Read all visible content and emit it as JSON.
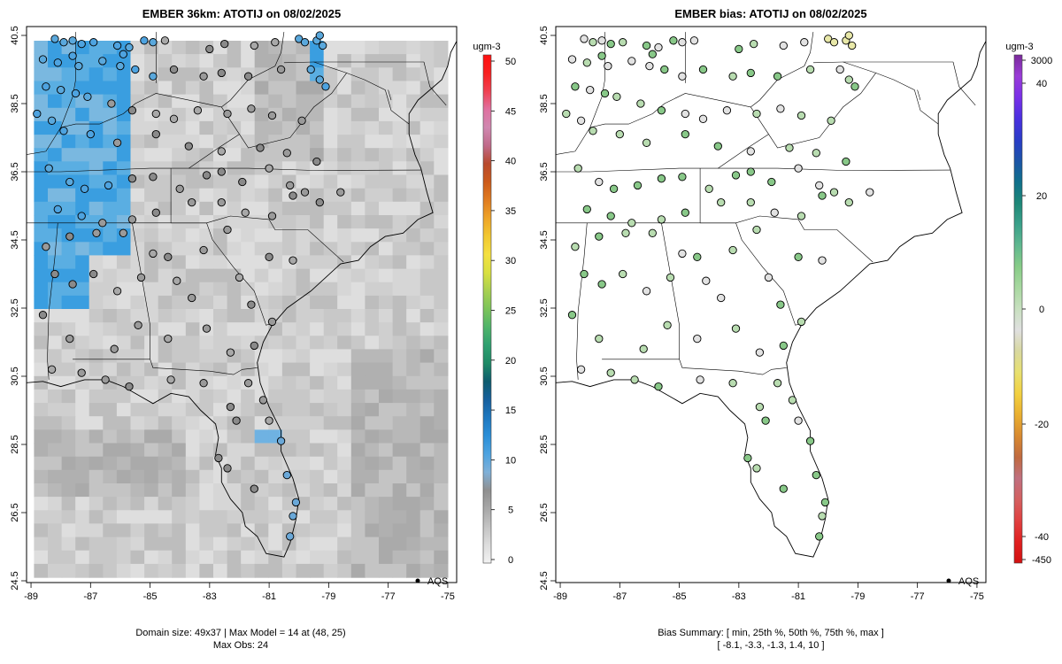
{
  "left_panel": {
    "title": "EMBER 36km: ATOTIJ on 08/02/2025",
    "footer_line1": "Domain size: 49x37 | Max Model = 14 at (48, 25)",
    "footer_line2": "Max Obs: 24",
    "legend_label": "AQS",
    "colorbar": {
      "unit": "ugm-3",
      "ticks": [
        "0",
        "5",
        "10",
        "15",
        "20",
        "25",
        "30",
        "35",
        "40",
        "45",
        "50"
      ],
      "colors": [
        "#f2f2f2",
        "#dddddd",
        "#c4c4c4",
        "#a8a8a8",
        "#8f8f8f",
        "#7fb0d8",
        "#4ea3e0",
        "#2b8fd8",
        "#1e78c0",
        "#16609e",
        "#0e5b6e",
        "#1e8a66",
        "#2fa070",
        "#4fb46a",
        "#7cc45a",
        "#a8d050",
        "#d8e040",
        "#f4e040",
        "#f2c830",
        "#eea428",
        "#e07c20",
        "#cc5a1a",
        "#b84a2e",
        "#c06a8a",
        "#d088b0",
        "#e070a0",
        "#f04050",
        "#f82020",
        "#ff1010"
      ]
    },
    "x_ticks": [
      "-89",
      "-87",
      "-85",
      "-83",
      "-81",
      "-79",
      "-77",
      "-75"
    ],
    "y_ticks": [
      "24.5",
      "26.5",
      "28.5",
      "30.5",
      "32.5",
      "34.5",
      "36.5",
      "38.5",
      "40.5"
    ]
  },
  "right_panel": {
    "title": "EMBER bias: ATOTIJ on 08/02/2025",
    "footer_line1": "Bias Summary: [ min, 25th %, 50th %, 75th %, max ]",
    "footer_line2": "[ -8.1,   -3.3,   -1.3,   1.4,   10 ]",
    "legend_label": "AQS",
    "colorbar": {
      "unit": "ugm-3",
      "ticks": [
        "3000",
        "40",
        "20",
        "0",
        "-20",
        "-40",
        "-450"
      ],
      "colors": [
        "#d21010",
        "#e02020",
        "#e04040",
        "#d46060",
        "#c07080",
        "#c06a40",
        "#d88a30",
        "#eab030",
        "#f2d040",
        "#e8e070",
        "#d8d8a0",
        "#e0e0e0",
        "#c8e0c0",
        "#a8d8a0",
        "#88cc88",
        "#60b890",
        "#3aa08a",
        "#1e8878",
        "#10708c",
        "#1c54a8",
        "#2a3cc8",
        "#4a30e0",
        "#7a30e8",
        "#9a3cd8",
        "#7a2a9a"
      ]
    },
    "x_ticks": [
      "-89",
      "-87",
      "-85",
      "-83",
      "-81",
      "-79",
      "-77",
      "-75"
    ],
    "y_ticks": [
      "24.5",
      "26.5",
      "28.5",
      "30.5",
      "32.5",
      "34.5",
      "36.5",
      "38.5",
      "40.5"
    ]
  },
  "stations": [
    [
      -88.2,
      40.4
    ],
    [
      -87.9,
      40.3
    ],
    [
      -87.6,
      40.35
    ],
    [
      -87.3,
      40.25
    ],
    [
      -86.9,
      40.3
    ],
    [
      -86.1,
      40.2
    ],
    [
      -85.9,
      39.95
    ],
    [
      -85.7,
      40.15
    ],
    [
      -85.2,
      40.35
    ],
    [
      -84.9,
      40.3
    ],
    [
      -84.5,
      40.35
    ],
    [
      -83.0,
      40.1
    ],
    [
      -82.5,
      40.25
    ],
    [
      -81.5,
      40.2
    ],
    [
      -80.8,
      40.3
    ],
    [
      -80.0,
      40.4
    ],
    [
      -79.8,
      40.3
    ],
    [
      -79.4,
      40.35
    ],
    [
      -79.3,
      40.5
    ],
    [
      -79.2,
      40.2
    ],
    [
      -88.6,
      39.8
    ],
    [
      -88.1,
      39.7
    ],
    [
      -87.6,
      39.9
    ],
    [
      -87.4,
      39.6
    ],
    [
      -86.6,
      39.75
    ],
    [
      -86.0,
      39.6
    ],
    [
      -85.5,
      39.5
    ],
    [
      -84.9,
      39.3
    ],
    [
      -84.2,
      39.5
    ],
    [
      -83.2,
      39.3
    ],
    [
      -82.6,
      39.4
    ],
    [
      -81.7,
      39.3
    ],
    [
      -80.6,
      39.5
    ],
    [
      -79.6,
      39.5
    ],
    [
      -79.3,
      39.2
    ],
    [
      -79.1,
      39.0
    ],
    [
      -88.5,
      39.0
    ],
    [
      -88.0,
      38.9
    ],
    [
      -87.5,
      38.8
    ],
    [
      -87.1,
      38.7
    ],
    [
      -86.3,
      38.5
    ],
    [
      -85.6,
      38.3
    ],
    [
      -84.8,
      38.2
    ],
    [
      -84.2,
      38.05
    ],
    [
      -83.4,
      38.3
    ],
    [
      -82.4,
      38.2
    ],
    [
      -81.6,
      38.35
    ],
    [
      -80.9,
      38.15
    ],
    [
      -79.9,
      38.0
    ],
    [
      -88.8,
      38.2
    ],
    [
      -88.3,
      38.0
    ],
    [
      -87.9,
      37.7
    ],
    [
      -87.0,
      37.6
    ],
    [
      -86.1,
      37.35
    ],
    [
      -84.8,
      37.6
    ],
    [
      -83.7,
      37.25
    ],
    [
      -82.6,
      37.1
    ],
    [
      -81.3,
      37.2
    ],
    [
      -80.4,
      37.05
    ],
    [
      -79.4,
      36.8
    ],
    [
      -88.4,
      36.6
    ],
    [
      -87.7,
      36.2
    ],
    [
      -87.2,
      36.0
    ],
    [
      -86.4,
      36.1
    ],
    [
      -85.6,
      36.3
    ],
    [
      -84.9,
      36.35
    ],
    [
      -84.0,
      36.0
    ],
    [
      -83.1,
      36.4
    ],
    [
      -82.6,
      36.5
    ],
    [
      -81.9,
      36.2
    ],
    [
      -81.0,
      36.6
    ],
    [
      -80.3,
      36.1
    ],
    [
      -79.8,
      35.9
    ],
    [
      -88.1,
      35.4
    ],
    [
      -87.3,
      35.2
    ],
    [
      -86.6,
      35.0
    ],
    [
      -85.6,
      35.1
    ],
    [
      -84.8,
      35.3
    ],
    [
      -83.6,
      35.6
    ],
    [
      -82.6,
      35.6
    ],
    [
      -81.8,
      35.3
    ],
    [
      -80.9,
      35.2
    ],
    [
      -80.2,
      35.8
    ],
    [
      -79.3,
      35.6
    ],
    [
      -78.6,
      35.9
    ],
    [
      -88.5,
      34.3
    ],
    [
      -87.7,
      34.6
    ],
    [
      -86.8,
      34.7
    ],
    [
      -85.9,
      34.7
    ],
    [
      -84.9,
      34.1
    ],
    [
      -84.4,
      34.0
    ],
    [
      -83.2,
      34.2
    ],
    [
      -82.4,
      34.8
    ],
    [
      -81.0,
      34.0
    ],
    [
      -80.2,
      33.9
    ],
    [
      -88.2,
      33.5
    ],
    [
      -87.6,
      33.2
    ],
    [
      -86.9,
      33.5
    ],
    [
      -86.1,
      33.0
    ],
    [
      -85.3,
      33.4
    ],
    [
      -84.1,
      33.3
    ],
    [
      -83.6,
      32.8
    ],
    [
      -82.0,
      33.4
    ],
    [
      -81.6,
      32.6
    ],
    [
      -80.9,
      32.1
    ],
    [
      -88.6,
      32.3
    ],
    [
      -87.7,
      31.6
    ],
    [
      -86.2,
      31.3
    ],
    [
      -85.4,
      32.0
    ],
    [
      -84.4,
      31.6
    ],
    [
      -83.1,
      31.9
    ],
    [
      -82.3,
      31.2
    ],
    [
      -81.5,
      31.4
    ],
    [
      -88.3,
      30.7
    ],
    [
      -87.3,
      30.6
    ],
    [
      -86.5,
      30.4
    ],
    [
      -85.7,
      30.2
    ],
    [
      -84.3,
      30.4
    ],
    [
      -83.2,
      30.3
    ],
    [
      -81.7,
      30.3
    ],
    [
      -81.2,
      29.8
    ],
    [
      -82.3,
      29.6
    ],
    [
      -82.1,
      29.2
    ],
    [
      -81.0,
      29.2
    ],
    [
      -80.6,
      28.6
    ],
    [
      -82.7,
      28.1
    ],
    [
      -82.4,
      27.8
    ],
    [
      -81.5,
      27.2
    ],
    [
      -80.4,
      27.6
    ],
    [
      -80.1,
      26.8
    ],
    [
      -80.2,
      26.4
    ],
    [
      -80.3,
      25.8
    ]
  ]
}
